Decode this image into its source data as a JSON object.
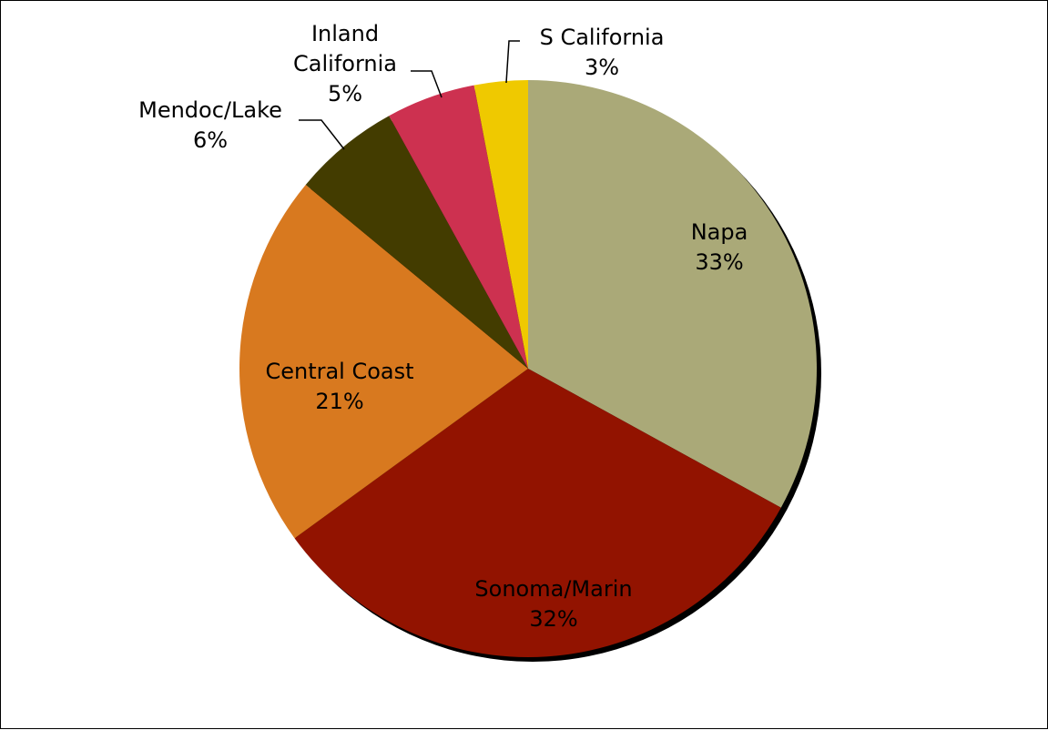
{
  "chart_data": {
    "type": "pie",
    "title": "",
    "start_angle_deg": 0,
    "direction": "clockwise",
    "slices": [
      {
        "name": "Napa",
        "label_lines": [
          "Napa"
        ],
        "value": 33,
        "value_label": "33%",
        "color": "#AAA978"
      },
      {
        "name": "Sonoma/Marin",
        "label_lines": [
          "Sonoma/Marin"
        ],
        "value": 32,
        "value_label": "32%",
        "color": "#921300"
      },
      {
        "name": "Central Coast",
        "label_lines": [
          "Central Coast"
        ],
        "value": 21,
        "value_label": "21%",
        "color": "#D8791F"
      },
      {
        "name": "Mendoc/Lake",
        "label_lines": [
          "Mendoc/Lake"
        ],
        "value": 6,
        "value_label": "6%",
        "color": "#433C00"
      },
      {
        "name": "Inland California",
        "label_lines": [
          "Inland",
          "California"
        ],
        "value": 5,
        "value_label": "5%",
        "color": "#CD3150"
      },
      {
        "name": "S California",
        "label_lines": [
          "S California"
        ],
        "value": 3,
        "value_label": "3%",
        "color": "#EFC900"
      }
    ],
    "colors": {
      "border": "#000000",
      "shadow": "#000000",
      "text": "#000000"
    }
  }
}
